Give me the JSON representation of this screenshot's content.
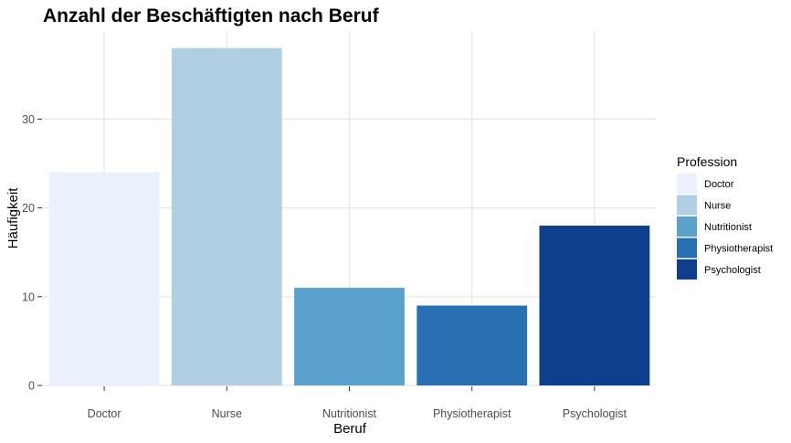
{
  "chart_data": {
    "type": "bar",
    "title": "Anzahl der Beschäftigten nach Beruf",
    "xlabel": "Beruf",
    "ylabel": "Häufigkeit",
    "categories": [
      "Doctor",
      "Nurse",
      "Nutritionist",
      "Physiotherapist",
      "Psychologist"
    ],
    "values": [
      24,
      38,
      11,
      9,
      18
    ],
    "colors": [
      "#eaf1fd",
      "#b1cfe2",
      "#5ba1cd",
      "#2970b3",
      "#0d3f8c"
    ],
    "ylim": [
      0,
      40
    ],
    "yticks": [
      0,
      10,
      20,
      30
    ],
    "grid": true,
    "legend": {
      "title": "Profession",
      "placement": "right",
      "entries": [
        "Doctor",
        "Nurse",
        "Nutritionist",
        "Physiotherapist",
        "Psychologist"
      ]
    }
  }
}
